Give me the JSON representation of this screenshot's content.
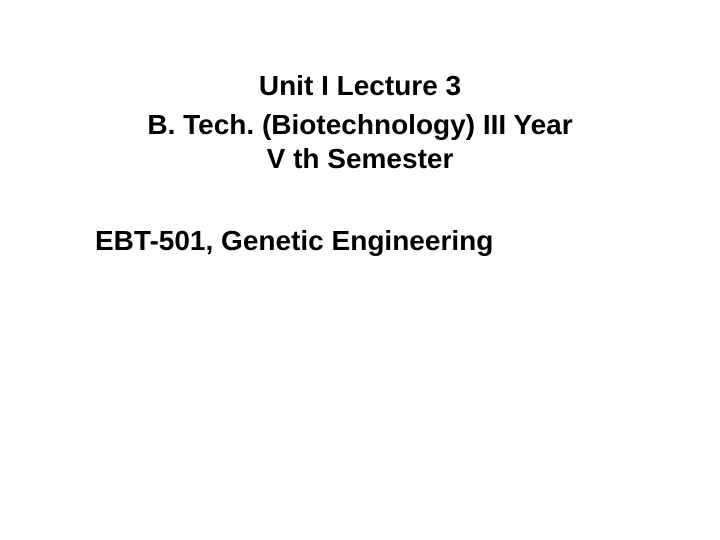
{
  "slide": {
    "unit_lecture": "Unit I Lecture 3",
    "program_line1": "B. Tech. (Biotechnology) III Year",
    "program_line2": "V th  Semester",
    "course": "EBT-501, Genetic Engineering",
    "background_color": "#ffffff",
    "text_color": "#000000",
    "font_size": 28,
    "font_weight": "bold",
    "font_family": "Arial"
  }
}
